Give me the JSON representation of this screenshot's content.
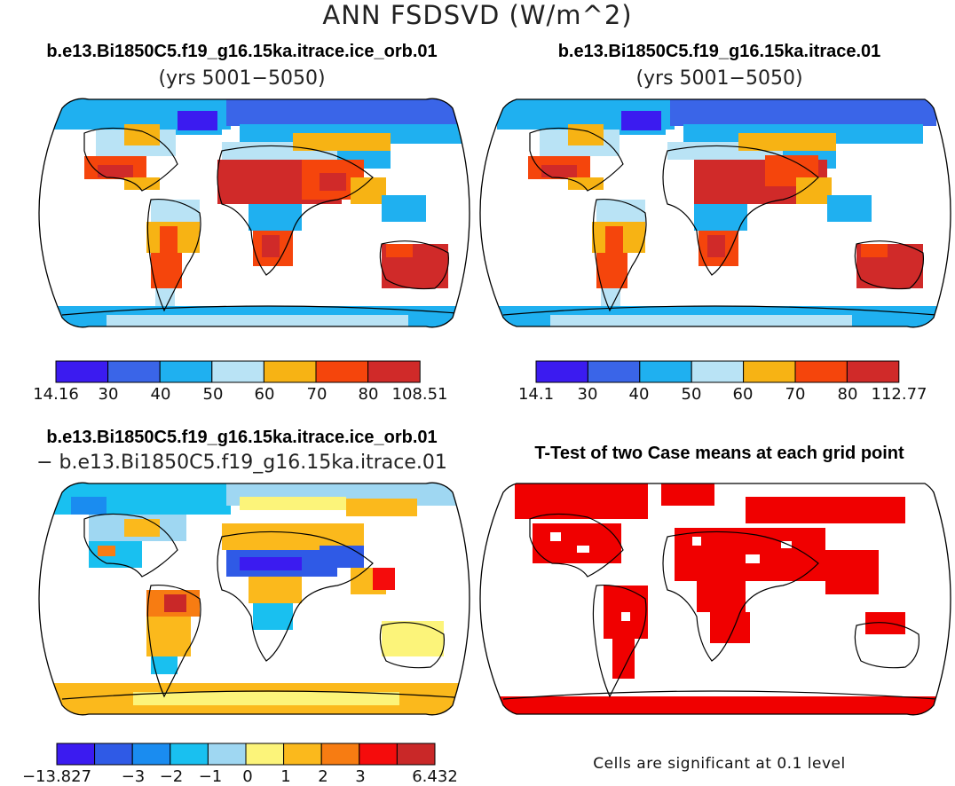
{
  "title": "ANN FSDSVD (W/m^2)",
  "colors": {
    "land_outline": "#000000",
    "panel1_palette": [
      "#3b1bf0",
      "#3a65e8",
      "#1fb0f0",
      "#b9e3f5",
      "#f7b314",
      "#f5450c",
      "#d02a29"
    ],
    "panel3_palette": [
      "#3b1bf0",
      "#2f5ae6",
      "#1a8cf0",
      "#19c0f0",
      "#9fd7f2",
      "#fcf47a",
      "#fbb91c",
      "#f77c12",
      "#f50c0c",
      "#c92828"
    ],
    "significance": "#f00000"
  },
  "panels": [
    {
      "id": "case1",
      "title": "b.e13.Bi1850C5.f19_g16.15ka.itrace.ice_orb.01",
      "subtitle": "(yrs 5001−5050)",
      "colorbar": {
        "labels": [
          "14.16",
          "30",
          "40",
          "50",
          "60",
          "70",
          "80",
          "108.51"
        ]
      }
    },
    {
      "id": "case2",
      "title": "b.e13.Bi1850C5.f19_g16.15ka.itrace.01",
      "subtitle": "(yrs 5001−5050)",
      "colorbar": {
        "labels": [
          "14.1",
          "30",
          "40",
          "50",
          "60",
          "70",
          "80",
          "112.77"
        ]
      }
    },
    {
      "id": "difference",
      "title": "b.e13.Bi1850C5.f19_g16.15ka.itrace.ice_orb.01",
      "subtitle": "− b.e13.Bi1850C5.f19_g16.15ka.itrace.01",
      "colorbar": {
        "labels": [
          "−13.827",
          "−3",
          "−2",
          "−1",
          "0",
          "1",
          "2",
          "3",
          "6.432"
        ]
      }
    },
    {
      "id": "ttest",
      "title": "T-Test of two Case means at each grid point",
      "note": "Cells are significant at 0.1 level"
    }
  ]
}
